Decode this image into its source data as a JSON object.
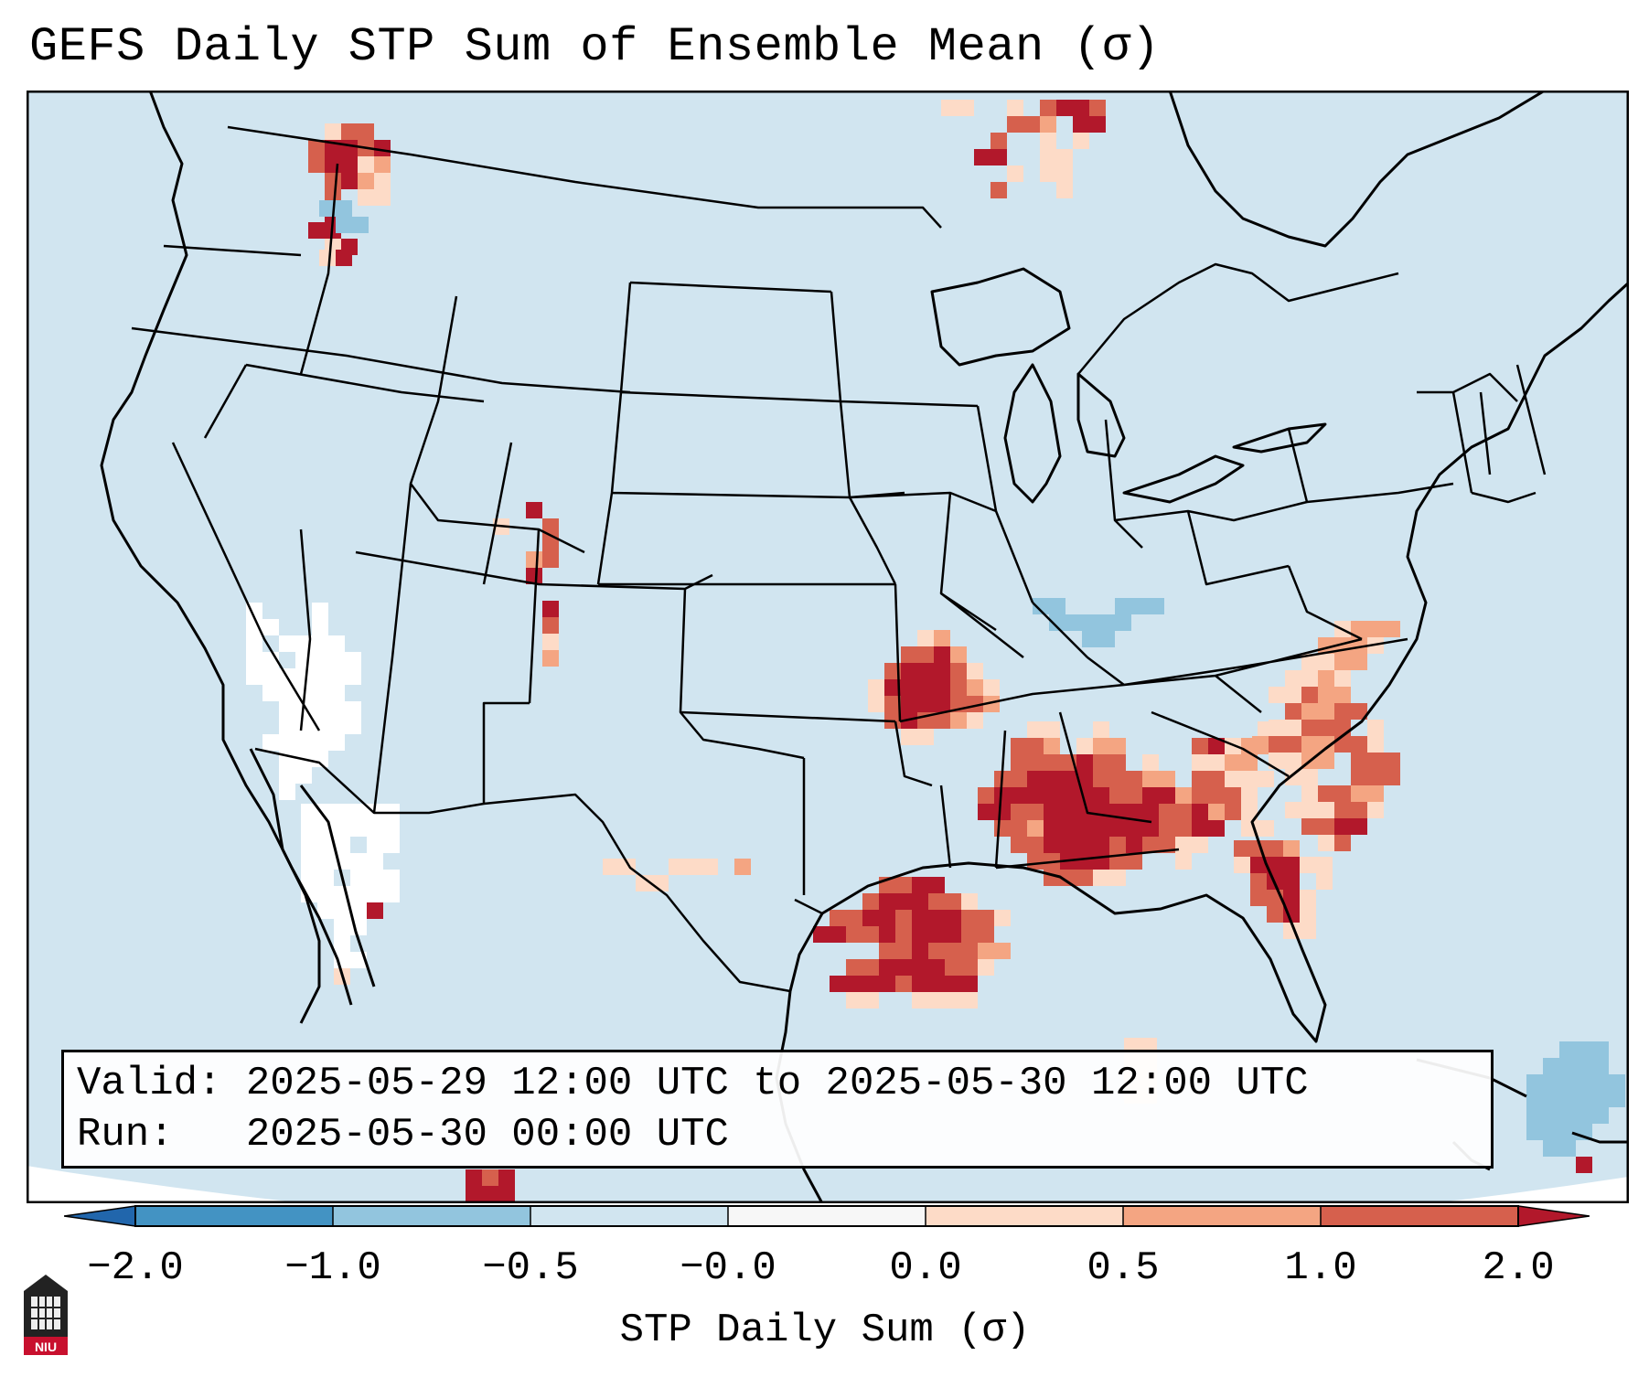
{
  "title": "GEFS Daily STP Sum of Ensemble Mean (σ)",
  "info": {
    "valid_label": "Valid:",
    "valid_value": "2025-05-29 12:00 UTC to 2025-05-30 12:00 UTC",
    "run_label": "Run:",
    "run_value": "2025-05-30 00:00 UTC"
  },
  "colorbar": {
    "label": "STP Daily Sum (σ)",
    "ticks": [
      "−2.0",
      "−1.0",
      "−0.5",
      "−0.0",
      "0.0",
      "0.5",
      "1.0",
      "2.0"
    ],
    "colors": {
      "below_min": "#2166ac",
      "bin_neg2_neg1": "#4393c3",
      "bin_neg1_neg05": "#92c5de",
      "bin_neg05_0": "#d1e5f0",
      "bin_0_0": "#f7f7f7",
      "bin_0_05": "#fddbc7",
      "bin_05_1": "#f4a582",
      "bin_1_2": "#d6604d",
      "above_max": "#b2182b"
    }
  },
  "map": {
    "background_color": "#d1e5f0",
    "border_color": "#000000"
  },
  "logo": {
    "text": "NIU"
  }
}
